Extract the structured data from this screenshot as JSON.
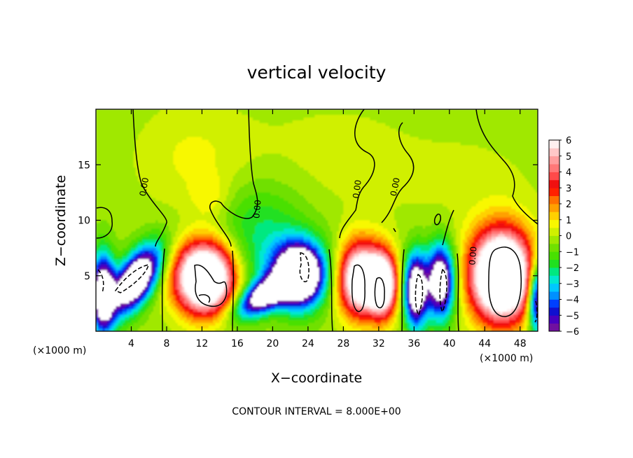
{
  "chart_data": {
    "type": "heatmap",
    "title": "vertical velocity",
    "xlabel": "X−coordinate",
    "ylabel": "Z−coordinate",
    "x_unit_left": "(×1000 m)",
    "x_unit_right": "(×1000 m)",
    "note": "CONTOUR INTERVAL = 8.000E+00",
    "xlim": [
      0,
      50
    ],
    "ylim": [
      0,
      20
    ],
    "xticks": [
      4,
      8,
      12,
      16,
      20,
      24,
      28,
      32,
      36,
      40,
      44,
      48
    ],
    "xtick_labels": [
      "4",
      "8",
      "12",
      "16",
      "20",
      "24",
      "28",
      "32",
      "36",
      "40",
      "44",
      "48"
    ],
    "yticks": [
      5,
      10,
      15
    ],
    "ytick_labels": [
      "5",
      "10",
      "15"
    ],
    "contour_labels": [
      {
        "text": "0.00",
        "x": 5.5,
        "y": 13.0,
        "rotate": -80
      },
      {
        "text": "0.00",
        "x": 18.3,
        "y": 11.0,
        "rotate": -85
      },
      {
        "text": "0.00",
        "x": 29.6,
        "y": 12.8,
        "rotate": -82
      },
      {
        "text": "0.00",
        "x": 33.9,
        "y": 13.0,
        "rotate": -78
      },
      {
        "text": "0.00",
        "x": 42.7,
        "y": 6.8,
        "rotate": -85
      }
    ],
    "colorbar": {
      "min": -6,
      "max": 6,
      "labels": [
        "6",
        "5",
        "4",
        "3",
        "2",
        "1",
        "0",
        "−1",
        "−2",
        "−3",
        "−4",
        "−5",
        "−6"
      ],
      "colors": [
        "#7010a0",
        "#4800c0",
        "#1010d0",
        "#0040ff",
        "#0090ff",
        "#00c8ff",
        "#00e8d0",
        "#00e880",
        "#20e020",
        "#48e000",
        "#70e000",
        "#a0e800",
        "#d0f000",
        "#f8f800",
        "#ffd000",
        "#ffa000",
        "#ff7000",
        "#ff2000",
        "#f01010",
        "#ff4a4a",
        "#ff7878",
        "#ff9e9e",
        "#ffc8c8",
        "#fff0f0"
      ]
    },
    "field": {
      "background": -0.3,
      "features": [
        {
          "x": 4.5,
          "y": 4.6,
          "sx": 2.6,
          "sy": 1.3,
          "amp": -9,
          "rot": 48
        },
        {
          "x": 0.8,
          "y": 3.5,
          "sx": 0.9,
          "sy": 2.4,
          "amp": -8,
          "rot": 0
        },
        {
          "x": 12.3,
          "y": 4.8,
          "sx": 2.3,
          "sy": 2.2,
          "amp": 11,
          "rot": 0
        },
        {
          "x": 19.0,
          "y": 3.2,
          "sx": 2.4,
          "sy": 1.0,
          "amp": -7,
          "rot": 25
        },
        {
          "x": 23.0,
          "y": 5.0,
          "sx": 1.8,
          "sy": 1.9,
          "amp": -9,
          "rot": 0
        },
        {
          "x": 22.0,
          "y": 5.6,
          "sx": 3.6,
          "sy": 2.2,
          "amp": -2.2,
          "rot": 0
        },
        {
          "x": 29.9,
          "y": 4.7,
          "sx": 1.7,
          "sy": 2.3,
          "amp": 9,
          "rot": 0
        },
        {
          "x": 32.5,
          "y": 4.2,
          "sx": 1.1,
          "sy": 2.0,
          "amp": 8,
          "rot": 0
        },
        {
          "x": 36.2,
          "y": 3.7,
          "sx": 0.9,
          "sy": 2.3,
          "amp": -8,
          "rot": 0
        },
        {
          "x": 39.0,
          "y": 4.5,
          "sx": 1.1,
          "sy": 2.3,
          "amp": -8,
          "rot": 0
        },
        {
          "x": 45.9,
          "y": 5.0,
          "sx": 2.4,
          "sy": 2.8,
          "amp": 12,
          "rot": 0
        },
        {
          "x": 49.9,
          "y": 3.0,
          "sx": 0.7,
          "sy": 2.2,
          "amp": -7,
          "rot": 0
        },
        {
          "x": 18.5,
          "y": 9.8,
          "sx": 3.8,
          "sy": 2.8,
          "amp": -1.6,
          "rot": 0
        },
        {
          "x": 11.0,
          "y": 15.6,
          "sx": 4.5,
          "sy": 3.4,
          "amp": 0.9,
          "rot": 0
        },
        {
          "x": 13.0,
          "y": 12.0,
          "sx": 1.6,
          "sy": 1.4,
          "amp": 1.0,
          "rot": 0
        },
        {
          "x": 27.0,
          "y": 15.5,
          "sx": 7.0,
          "sy": 4.0,
          "amp": 0.5,
          "rot": 0
        },
        {
          "x": 43.0,
          "y": 13.0,
          "sx": 6.0,
          "sy": 4.0,
          "amp": 0.4,
          "rot": 0
        }
      ]
    }
  }
}
